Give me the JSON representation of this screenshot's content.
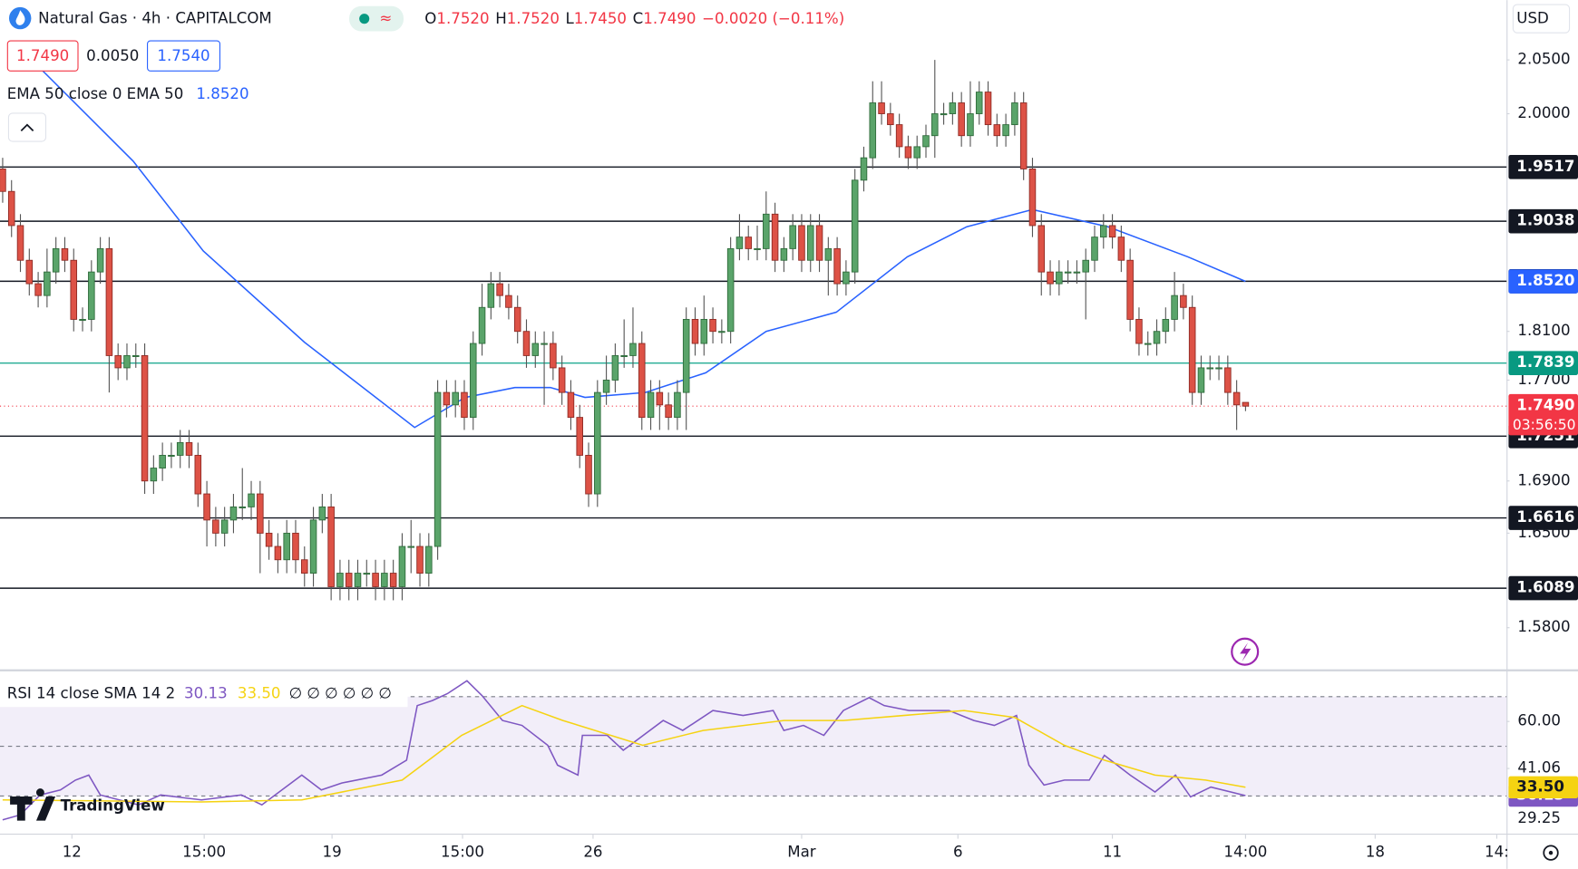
{
  "header": {
    "title": "Natural Gas · 4h · CAPITALCOM",
    "indicator_symbol": "≈",
    "ohlc_labels": [
      "O",
      "H",
      "L",
      "C"
    ],
    "ohlc_values": [
      "1.7520",
      "1.7520",
      "1.7450",
      "1.7490"
    ],
    "change": "−0.0020 (−0.11%)",
    "sell_price": "1.7490",
    "spread": "0.0050",
    "buy_price": "1.7540",
    "currency": "USD",
    "brand": "TradingView"
  },
  "chart_data": [
    {
      "type": "candlestick",
      "log_scale": true,
      "grid": false,
      "up_color": "#5aa46a",
      "down_color": "#dd5246",
      "xlim": [
        -0.3,
        169.4
      ],
      "ylim": [
        1.5505,
        2.107
      ],
      "xticks": [
        {
          "value": 7.8,
          "label": "12"
        },
        {
          "value": 22.7,
          "label": "15:00"
        },
        {
          "value": 37.1,
          "label": "19"
        },
        {
          "value": 51.8,
          "label": "15:00"
        },
        {
          "value": 66.5,
          "label": "26"
        },
        {
          "value": 90.0,
          "label": "Mar"
        },
        {
          "value": 107.6,
          "label": "6"
        },
        {
          "value": 125.0,
          "label": "11"
        },
        {
          "value": 140.0,
          "label": "14:00"
        },
        {
          "value": 154.6,
          "label": "18"
        },
        {
          "value": 168.3,
          "label": "14:"
        }
      ],
      "yticks": [
        {
          "value": 2.05,
          "label": "2.0500"
        },
        {
          "value": 2.0,
          "label": "2.0000"
        },
        {
          "value": 1.81,
          "label": "1.8100"
        },
        {
          "value": 1.77,
          "label": "1.7700"
        },
        {
          "value": 1.69,
          "label": "1.6900"
        },
        {
          "value": 1.65,
          "label": "1.6500"
        },
        {
          "value": 1.58,
          "label": "1.5800"
        }
      ],
      "levels": [
        1.9517,
        1.9038,
        1.8521,
        1.7251,
        1.6616,
        1.6089
      ],
      "marker_level": 1.7839,
      "marker_color": "#22ab94",
      "current_price": {
        "value": 1.749,
        "label": "1.7490"
      },
      "countdown": "03:56:50",
      "current_color": "#f23645",
      "open": [
        1.95,
        1.93,
        1.9,
        1.87,
        1.85,
        1.84,
        1.86,
        1.88,
        1.87,
        1.82,
        1.82,
        1.86,
        1.88,
        1.79,
        1.78,
        1.79,
        1.79,
        1.69,
        1.7,
        1.71,
        1.71,
        1.72,
        1.71,
        1.68,
        1.66,
        1.65,
        1.66,
        1.67,
        1.67,
        1.68,
        1.65,
        1.64,
        1.63,
        1.65,
        1.63,
        1.62,
        1.66,
        1.67,
        1.61,
        1.62,
        1.61,
        1.62,
        1.62,
        1.61,
        1.62,
        1.61,
        1.64,
        1.64,
        1.62,
        1.64,
        1.76,
        1.75,
        1.76,
        1.74,
        1.8,
        1.83,
        1.85,
        1.84,
        1.83,
        1.81,
        1.79,
        1.8,
        1.8,
        1.78,
        1.76,
        1.74,
        1.71,
        1.68,
        1.76,
        1.77,
        1.79,
        1.79,
        1.8,
        1.74,
        1.76,
        1.75,
        1.74,
        1.76,
        1.82,
        1.8,
        1.82,
        1.81,
        1.81,
        1.88,
        1.89,
        1.88,
        1.88,
        1.91,
        1.87,
        1.88,
        1.9,
        1.87,
        1.9,
        1.87,
        1.88,
        1.85,
        1.86,
        1.94,
        1.96,
        2.01,
        2.0,
        1.99,
        1.97,
        1.96,
        1.97,
        1.98,
        2.0,
        2.0,
        2.01,
        1.98,
        2.0,
        2.02,
        1.99,
        1.98,
        1.99,
        2.01,
        1.95,
        1.9,
        1.86,
        1.85,
        1.86,
        1.86,
        1.86,
        1.87,
        1.89,
        1.9,
        1.89,
        1.87,
        1.82,
        1.8,
        1.8,
        1.81,
        1.82,
        1.84,
        1.83,
        1.76,
        1.78,
        1.78,
        1.78,
        1.76,
        1.752
      ],
      "high": [
        1.96,
        1.94,
        1.91,
        1.88,
        1.86,
        1.88,
        1.89,
        1.89,
        1.88,
        1.83,
        1.87,
        1.89,
        1.89,
        1.8,
        1.8,
        1.8,
        1.8,
        1.71,
        1.72,
        1.72,
        1.73,
        1.73,
        1.72,
        1.69,
        1.67,
        1.67,
        1.68,
        1.7,
        1.69,
        1.69,
        1.66,
        1.65,
        1.66,
        1.66,
        1.64,
        1.67,
        1.68,
        1.68,
        1.63,
        1.63,
        1.63,
        1.63,
        1.63,
        1.63,
        1.63,
        1.65,
        1.66,
        1.65,
        1.65,
        1.77,
        1.77,
        1.77,
        1.77,
        1.81,
        1.85,
        1.86,
        1.86,
        1.85,
        1.84,
        1.82,
        1.81,
        1.81,
        1.81,
        1.79,
        1.77,
        1.75,
        1.72,
        1.77,
        1.79,
        1.8,
        1.82,
        1.83,
        1.81,
        1.77,
        1.77,
        1.76,
        1.77,
        1.83,
        1.83,
        1.84,
        1.83,
        1.82,
        1.89,
        1.91,
        1.9,
        1.9,
        1.93,
        1.92,
        1.89,
        1.91,
        1.91,
        1.91,
        1.91,
        1.89,
        1.89,
        1.87,
        1.95,
        1.97,
        2.03,
        2.03,
        2.01,
        2.0,
        1.98,
        1.98,
        1.99,
        2.05,
        2.01,
        2.02,
        2.02,
        2.03,
        2.03,
        2.03,
        2.0,
        2.0,
        2.02,
        2.02,
        1.96,
        1.91,
        1.87,
        1.87,
        1.87,
        1.87,
        1.88,
        1.9,
        1.91,
        1.91,
        1.9,
        1.88,
        1.83,
        1.81,
        1.82,
        1.83,
        1.86,
        1.85,
        1.84,
        1.79,
        1.79,
        1.79,
        1.79,
        1.77,
        1.752
      ],
      "low": [
        1.92,
        1.89,
        1.86,
        1.84,
        1.83,
        1.83,
        1.85,
        1.86,
        1.81,
        1.81,
        1.81,
        1.85,
        1.76,
        1.77,
        1.77,
        1.78,
        1.68,
        1.68,
        1.69,
        1.7,
        1.7,
        1.7,
        1.67,
        1.64,
        1.64,
        1.64,
        1.65,
        1.66,
        1.66,
        1.62,
        1.63,
        1.62,
        1.62,
        1.62,
        1.61,
        1.61,
        1.65,
        1.6,
        1.6,
        1.6,
        1.6,
        1.61,
        1.6,
        1.6,
        1.6,
        1.6,
        1.62,
        1.61,
        1.61,
        1.63,
        1.74,
        1.74,
        1.73,
        1.73,
        1.79,
        1.82,
        1.83,
        1.82,
        1.8,
        1.78,
        1.78,
        1.75,
        1.77,
        1.75,
        1.73,
        1.7,
        1.67,
        1.67,
        1.75,
        1.76,
        1.78,
        1.78,
        1.73,
        1.73,
        1.73,
        1.73,
        1.73,
        1.73,
        1.79,
        1.79,
        1.8,
        1.8,
        1.8,
        1.87,
        1.87,
        1.87,
        1.87,
        1.86,
        1.86,
        1.87,
        1.86,
        1.86,
        1.86,
        1.84,
        1.84,
        1.84,
        1.85,
        1.93,
        1.95,
        1.99,
        1.98,
        1.96,
        1.95,
        1.95,
        1.96,
        1.96,
        1.99,
        1.99,
        1.97,
        1.97,
        1.99,
        1.98,
        1.97,
        1.97,
        1.98,
        1.94,
        1.89,
        1.84,
        1.84,
        1.84,
        1.85,
        1.85,
        1.82,
        1.86,
        1.88,
        1.88,
        1.86,
        1.81,
        1.79,
        1.79,
        1.79,
        1.8,
        1.81,
        1.82,
        1.75,
        1.75,
        1.77,
        1.77,
        1.75,
        1.73,
        1.745
      ],
      "close": [
        1.93,
        1.9,
        1.87,
        1.85,
        1.84,
        1.86,
        1.88,
        1.87,
        1.82,
        1.82,
        1.86,
        1.88,
        1.79,
        1.78,
        1.79,
        1.79,
        1.69,
        1.7,
        1.71,
        1.71,
        1.72,
        1.71,
        1.68,
        1.66,
        1.65,
        1.66,
        1.67,
        1.67,
        1.68,
        1.65,
        1.64,
        1.63,
        1.65,
        1.63,
        1.62,
        1.66,
        1.67,
        1.61,
        1.62,
        1.61,
        1.62,
        1.62,
        1.61,
        1.62,
        1.61,
        1.64,
        1.64,
        1.62,
        1.64,
        1.76,
        1.75,
        1.76,
        1.74,
        1.8,
        1.83,
        1.85,
        1.84,
        1.83,
        1.81,
        1.79,
        1.8,
        1.8,
        1.78,
        1.76,
        1.74,
        1.71,
        1.68,
        1.76,
        1.77,
        1.79,
        1.79,
        1.8,
        1.74,
        1.76,
        1.75,
        1.74,
        1.76,
        1.82,
        1.8,
        1.82,
        1.81,
        1.81,
        1.88,
        1.89,
        1.88,
        1.88,
        1.91,
        1.87,
        1.88,
        1.9,
        1.87,
        1.9,
        1.87,
        1.88,
        1.85,
        1.86,
        1.94,
        1.96,
        2.01,
        2.0,
        1.99,
        1.97,
        1.96,
        1.97,
        1.98,
        2.0,
        2.0,
        2.01,
        1.98,
        2.0,
        2.02,
        1.99,
        1.98,
        1.99,
        2.01,
        1.95,
        1.9,
        1.86,
        1.85,
        1.86,
        1.86,
        1.86,
        1.87,
        1.89,
        1.9,
        1.89,
        1.87,
        1.82,
        1.8,
        1.8,
        1.81,
        1.82,
        1.84,
        1.83,
        1.76,
        1.78,
        1.78,
        1.78,
        1.76,
        1.75,
        1.749
      ],
      "ema": {
        "name": "EMA 50 close 0 EMA 50",
        "color": "#2962ff",
        "x": [
          3.4,
          14.7,
          22.6,
          34,
          46.4,
          52.1,
          57.7,
          61.7,
          65.6,
          72.4,
          79.2,
          86,
          93.9,
          101.9,
          108.6,
          116,
          124.5,
          133.5,
          140
        ],
        "values": [
          2.049,
          1.957,
          1.878,
          1.801,
          1.732,
          1.756,
          1.764,
          1.764,
          1.756,
          1.76,
          1.776,
          1.81,
          1.826,
          1.873,
          1.899,
          1.914,
          1.899,
          1.873,
          1.852
        ],
        "value_labels": [
          null,
          null,
          null,
          null,
          null,
          null,
          null,
          null,
          null,
          null,
          null,
          null,
          null,
          null,
          null,
          null,
          null,
          null,
          "1.8520"
        ]
      }
    },
    {
      "type": "line",
      "title": "RSI 14 close SMA 14 2",
      "na_values": "∅ ∅ ∅ ∅ ∅ ∅",
      "xlim": [
        -0.3,
        169.4
      ],
      "ylim": [
        15.2,
        80.4
      ],
      "bands": [
        70,
        50,
        30
      ],
      "band_color": "#7e57c2",
      "yticks": [
        {
          "value": 60,
          "label": "60.00"
        },
        {
          "value": 41.06,
          "label": "41.06"
        },
        {
          "value": 29.25,
          "label": "29.25"
        }
      ],
      "series": [
        {
          "name": "RSI",
          "color": "#7e57c2",
          "x": [
            0,
            2.0,
            4.2,
            6.5,
            8.2,
            9.7,
            11.0,
            15.3,
            17.8,
            22.4,
            26.9,
            29.2,
            33.7,
            35.9,
            38.2,
            42.7,
            45.5,
            46.7,
            48.4,
            50.1,
            52.3,
            54.0,
            56.3,
            58.5,
            61.4,
            62.5,
            64.8,
            65.3,
            68.1,
            69.9,
            74.4,
            76.6,
            80.0,
            83.4,
            86.8,
            88.0,
            90.2,
            92.5,
            94.7,
            97.6,
            99.3,
            102.1,
            104.3,
            106.6,
            109.4,
            111.7,
            114.2,
            115.6,
            117.3,
            119.6,
            122.4,
            124.1,
            127.0,
            129.8,
            132.1,
            133.8,
            136.1,
            140
          ],
          "values": [
            20.4,
            22.4,
            30.4,
            32.4,
            36.4,
            38.4,
            30.4,
            26.4,
            30.4,
            28.4,
            30.4,
            26.4,
            38.4,
            32.4,
            35.2,
            38.4,
            44.4,
            66.4,
            68.4,
            71.2,
            76.4,
            70.4,
            60.4,
            58.4,
            50.4,
            42.4,
            38.4,
            54.4,
            54.4,
            48.4,
            60.4,
            56.4,
            64.4,
            62.4,
            64.4,
            56.4,
            58.4,
            54.4,
            64.4,
            69.6,
            66.4,
            64.4,
            64.4,
            64.4,
            60.4,
            58.4,
            62.4,
            42.4,
            34.4,
            36.4,
            36.4,
            46.4,
            38.4,
            31.6,
            38.4,
            29.6,
            33.6,
            30.13
          ]
        },
        {
          "name": "SMA",
          "color": "#f5d312",
          "x": [
            0,
            22.4,
            33.7,
            45.0,
            51.7,
            58.5,
            63.1,
            72.1,
            78.9,
            88.0,
            94.7,
            101.5,
            108.3,
            114.0,
            119.6,
            124.1,
            129.8,
            135.5,
            140
          ],
          "values": [
            28.4,
            27.6,
            28.4,
            36.4,
            54.4,
            66.4,
            60.4,
            50.4,
            56.4,
            60.4,
            60.4,
            62.4,
            64.4,
            61.6,
            50.4,
            44.4,
            38.4,
            36.4,
            33.5
          ],
          "value_labels": [
            null,
            null,
            null,
            null,
            null,
            null,
            null,
            null,
            null,
            null,
            null,
            null,
            null,
            null,
            null,
            null,
            null,
            null,
            "33.50"
          ]
        }
      ]
    }
  ]
}
